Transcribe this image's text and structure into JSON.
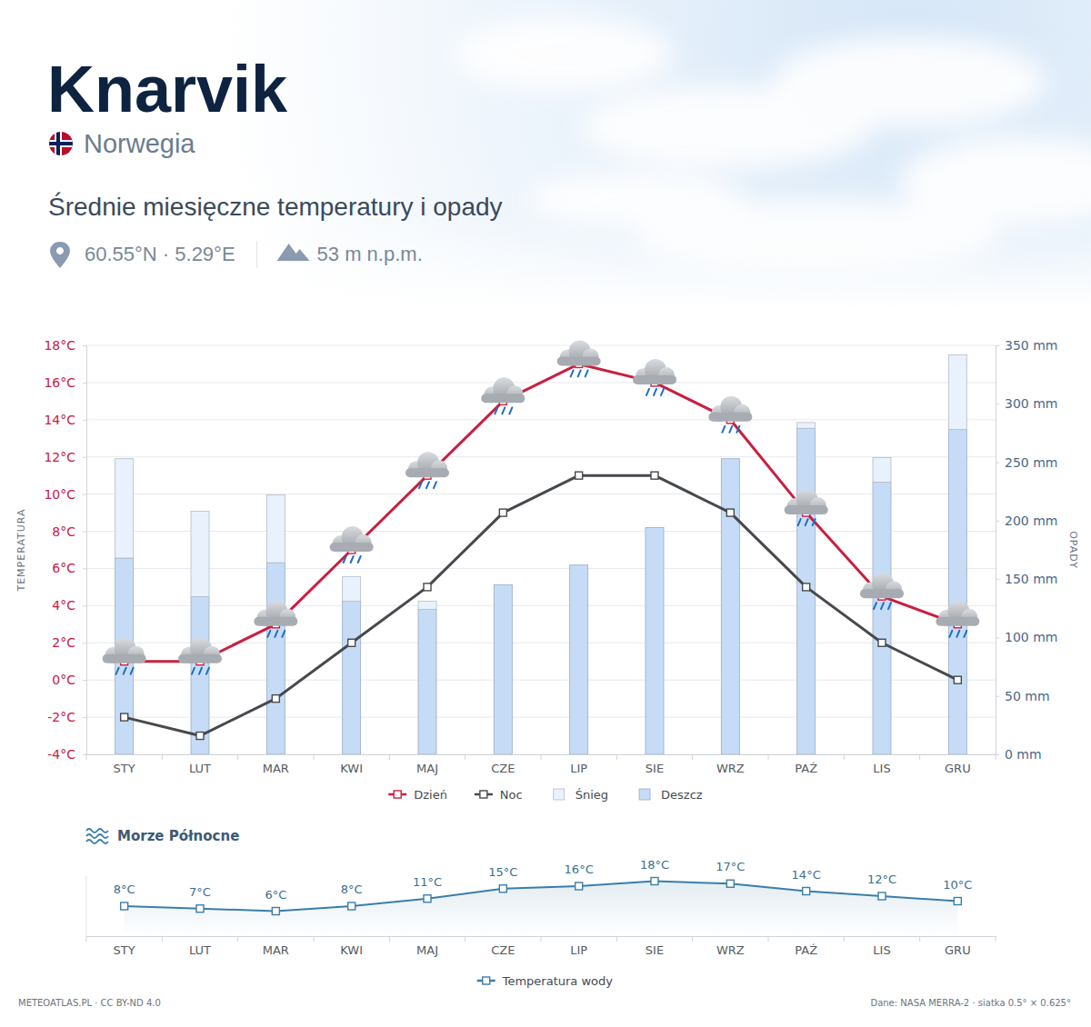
{
  "header": {
    "title": "Knarvik",
    "country": "Norwegia",
    "subtitle": "Średnie miesięczne temperatury i opady",
    "coords": "60.55°N · 5.29°E",
    "elevation": "53 m n.p.m."
  },
  "chart_data": [
    {
      "type": "bar",
      "categories": [
        "STY",
        "LUT",
        "MAR",
        "KWI",
        "MAJ",
        "CZE",
        "LIP",
        "SIE",
        "WRZ",
        "PAŹ",
        "LIS",
        "GRU"
      ],
      "ylabel": "TEMPERATURA",
      "y2label": "OPADY",
      "ylim": [
        -4,
        18
      ],
      "yticks": [
        {
          "value": -4,
          "label": "-4°C"
        },
        {
          "value": -2,
          "label": "-2°C"
        },
        {
          "value": 0,
          "label": "0°C"
        },
        {
          "value": 2,
          "label": "2°C"
        },
        {
          "value": 4,
          "label": "4°C"
        },
        {
          "value": 6,
          "label": "6°C"
        },
        {
          "value": 8,
          "label": "8°C"
        },
        {
          "value": 10,
          "label": "10°C"
        },
        {
          "value": 12,
          "label": "12°C"
        },
        {
          "value": 14,
          "label": "14°C"
        },
        {
          "value": 16,
          "label": "16°C"
        },
        {
          "value": 18,
          "label": "18°C"
        }
      ],
      "y2lim": [
        0,
        350
      ],
      "y2ticks": [
        {
          "value": 0,
          "label": "0 mm"
        },
        {
          "value": 50,
          "label": "50 mm"
        },
        {
          "value": 100,
          "label": "100 mm"
        },
        {
          "value": 150,
          "label": "150 mm"
        },
        {
          "value": 200,
          "label": "200 mm"
        },
        {
          "value": 250,
          "label": "250 mm"
        },
        {
          "value": 300,
          "label": "300 mm"
        },
        {
          "value": 350,
          "label": "350 mm"
        }
      ],
      "grid": true,
      "stacked": true,
      "legend": "bottom",
      "series": [
        {
          "name": "Dzień",
          "type": "line",
          "color": "#c8203f",
          "marker": "square",
          "values": [
            1,
            1,
            3,
            7,
            11,
            15,
            17,
            16,
            14,
            9,
            4.5,
            3
          ]
        },
        {
          "name": "Noc",
          "type": "line",
          "color": "#46494d",
          "marker": "square",
          "values": [
            -2,
            -3,
            -1,
            2,
            5,
            9,
            11,
            11,
            9,
            5,
            2,
            0
          ]
        },
        {
          "name": "Śnieg",
          "type": "bar",
          "axis": "y2",
          "color": "#e8f1fc",
          "values": [
            85,
            73,
            58,
            21,
            7,
            0,
            0,
            0,
            0,
            5,
            21,
            64
          ]
        },
        {
          "name": "Deszcz",
          "type": "bar",
          "axis": "y2",
          "color": "#c6dcf6",
          "values": [
            168,
            135,
            164,
            131,
            124,
            145,
            162,
            194,
            253,
            279,
            233,
            278
          ]
        }
      ]
    },
    {
      "type": "line",
      "title": "Morze Północne",
      "categories": [
        "STY",
        "LUT",
        "MAR",
        "KWI",
        "MAJ",
        "CZE",
        "LIP",
        "SIE",
        "WRZ",
        "PAŹ",
        "LIS",
        "GRU"
      ],
      "ylim": [
        -4,
        20
      ],
      "tick_labels": "x",
      "data_labels": true,
      "legend": "bottom",
      "series": [
        {
          "name": "Temperatura wody",
          "color": "#3b7ea8",
          "marker": "square",
          "values": [
            8,
            7,
            6,
            8,
            11,
            15,
            16,
            18,
            17,
            14,
            12,
            10
          ],
          "value_labels": [
            "8°C",
            "7°C",
            "6°C",
            "8°C",
            "11°C",
            "15°C",
            "16°C",
            "18°C",
            "17°C",
            "14°C",
            "12°C",
            "10°C"
          ]
        }
      ]
    }
  ],
  "footer": {
    "left": "METEOATLAS.PL · CC BY-ND 4.0",
    "right": "Dane: NASA MERRA-2 · siatka 0.5° × 0.625°"
  }
}
